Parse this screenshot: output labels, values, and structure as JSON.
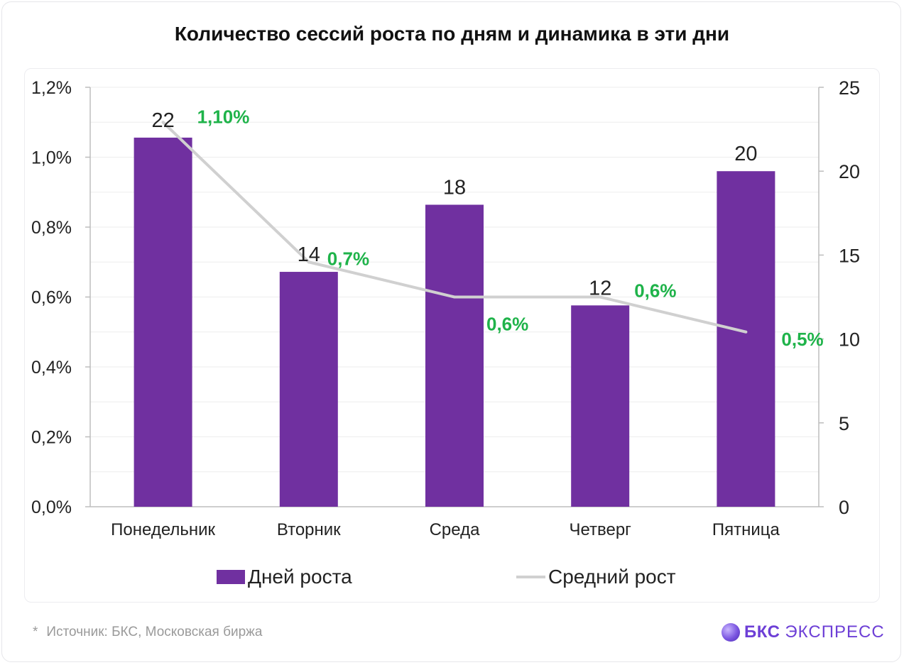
{
  "title": "Количество сессий роста по дням и динамика в эти дни",
  "footnote": {
    "star": "*",
    "text": "Источник: БКС, Московская биржа"
  },
  "brand": {
    "strong": "БКС",
    "light": "ЭКСПРЕСС",
    "icon": "sphere-logo-icon",
    "color": "#6d3fd6"
  },
  "chart_data": {
    "type": "bar",
    "categories": [
      "Понедельник",
      "Вторник",
      "Среда",
      "Четверг",
      "Пятница"
    ],
    "series": [
      {
        "name": "Дней роста",
        "type": "bar",
        "axis": "right",
        "color": "#7030a0",
        "values": [
          22,
          14,
          18,
          12,
          20
        ],
        "labels": [
          "22",
          "14",
          "18",
          "12",
          "20"
        ]
      },
      {
        "name": "Средний рост",
        "type": "line",
        "axis": "left",
        "color": "#d0d0d0",
        "values": [
          1.1,
          0.7,
          0.6,
          0.6,
          0.5
        ],
        "labels": [
          "1,10%",
          "0,7%",
          "0,6%",
          "0,6%",
          "0,5%"
        ],
        "label_color": "#1fb34a"
      }
    ],
    "y_left": {
      "min": 0,
      "max": 1.2,
      "ticks": [
        "0,0%",
        "0,2%",
        "0,4%",
        "0,6%",
        "0,8%",
        "1,0%",
        "1,2%"
      ]
    },
    "y_right": {
      "min": 0,
      "max": 25,
      "ticks": [
        "0",
        "5",
        "10",
        "15",
        "20",
        "25"
      ]
    },
    "grid": true,
    "legend": "bottom-center"
  }
}
